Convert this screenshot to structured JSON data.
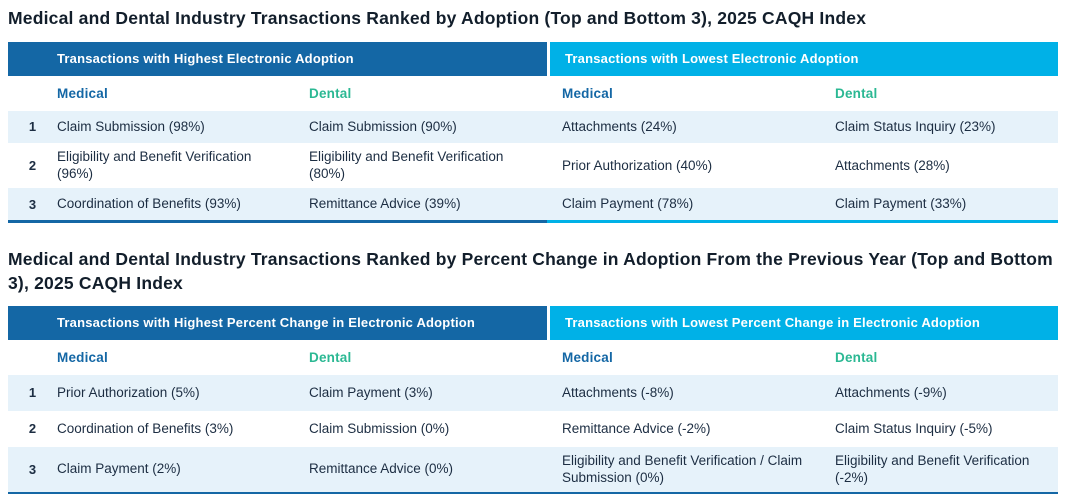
{
  "colors": {
    "dark_blue_header": "#1467a5",
    "cyan_header": "#00b1e7",
    "row_stripe_light_blue": "#e6f2fa",
    "medical_label_blue": "#1467a5",
    "dental_label_green": "#2bb893",
    "body_text": "#1c2d42",
    "title_text": "#121e2b"
  },
  "tables": [
    {
      "title": "Medical and Dental Industry Transactions Ranked by Adoption (Top and Bottom 3), 2025 CAQH Index",
      "left_header": {
        "prefix": "Transactions with ",
        "emphasis": "Highest",
        "suffix": " Electronic Adoption"
      },
      "right_header": {
        "prefix": "Transactions with ",
        "emphasis": "Lowest",
        "suffix": " Electronic Adoption"
      },
      "columns": [
        "Medical",
        "Dental",
        "Medical",
        "Dental"
      ],
      "rows": [
        {
          "rank": "1",
          "cells": [
            "Claim Submission (98%)",
            "Claim Submission (90%)",
            "Attachments (24%)",
            "Claim Status Inquiry (23%)"
          ]
        },
        {
          "rank": "2",
          "cells": [
            "Eligibility and Benefit Verification (96%)",
            "Eligibility and Benefit Verification (80%)",
            "Prior Authorization (40%)",
            "Attachments (28%)"
          ]
        },
        {
          "rank": "3",
          "cells": [
            "Coordination of Benefits (93%)",
            "Remittance Advice (39%)",
            "Claim Payment (78%)",
            "Claim Payment (33%)"
          ]
        }
      ]
    },
    {
      "title": "Medical and Dental Industry Transactions Ranked by Percent Change in Adoption From the Previous Year (Top and Bottom 3), 2025 CAQH Index",
      "left_header": {
        "prefix": "Transactions with ",
        "emphasis": "Highest",
        "suffix": " Percent Change in Electronic Adoption"
      },
      "right_header": {
        "prefix": "Transactions with ",
        "emphasis": "Lowest",
        "suffix": " Percent Change in Electronic Adoption"
      },
      "columns": [
        "Medical",
        "Dental",
        "Medical",
        "Dental"
      ],
      "rows": [
        {
          "rank": "1",
          "cells": [
            "Prior Authorization (5%)",
            "Claim Payment (3%)",
            "Attachments (-8%)",
            "Attachments (-9%)"
          ]
        },
        {
          "rank": "2",
          "cells": [
            "Coordination of Benefits (3%)",
            "Claim Submission (0%)",
            "Remittance Advice (-2%)",
            "Claim Status Inquiry (-5%)"
          ]
        },
        {
          "rank": "3",
          "cells": [
            "Claim Payment (2%)",
            "Remittance Advice (0%)",
            "Eligibility and Benefit Verification / Claim Submission (0%)",
            "Eligibility and Benefit Verification (-2%)"
          ]
        }
      ]
    }
  ]
}
